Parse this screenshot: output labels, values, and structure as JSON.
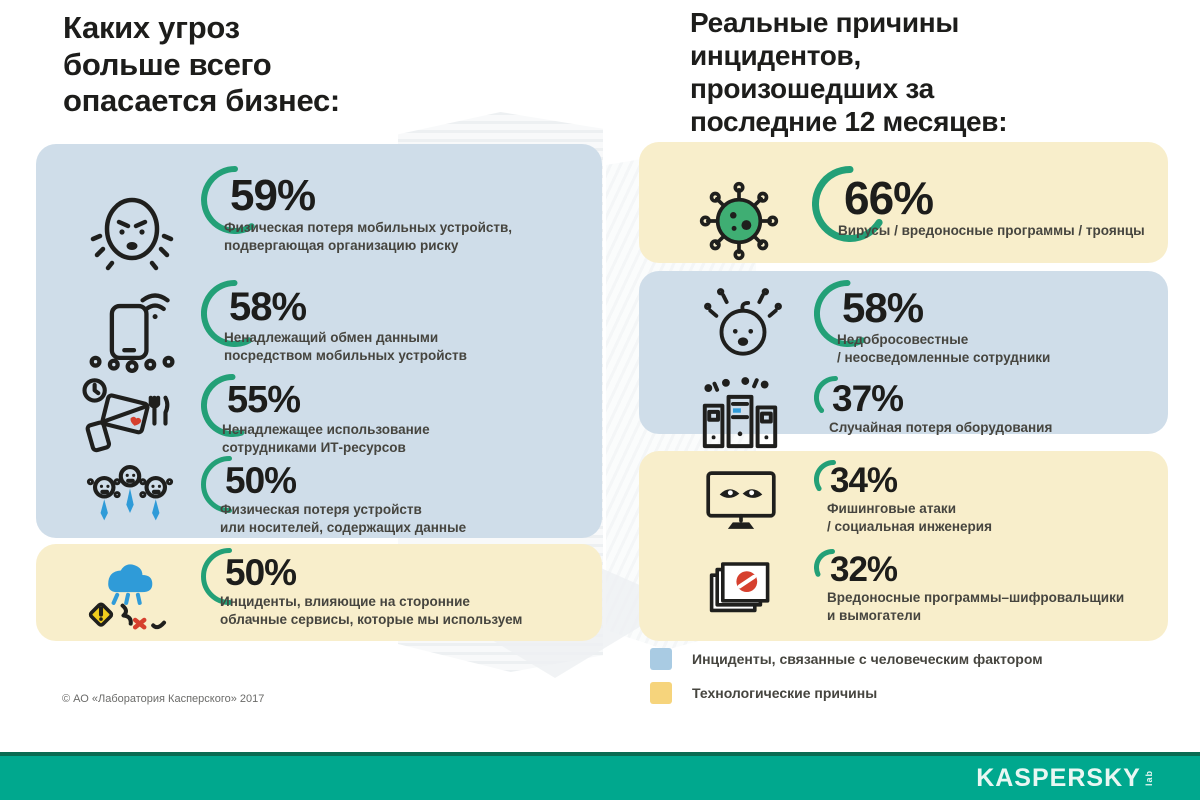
{
  "theme": {
    "arc_green": "#23a077",
    "panel_blue": "#cfdde9",
    "panel_yellow": "#f8eecb",
    "bar_green": "#00a88e",
    "bar_green_dark": "#0a6b52",
    "legend_blue": "#a9cbe3",
    "legend_yellow": "#f6d47c",
    "text_dark": "#1d1d1b",
    "icon_blue": "#2f9bd8",
    "icon_green": "#3fae73",
    "icon_red": "#d6402e",
    "icon_yellow": "#f0cd1e"
  },
  "left": {
    "title": "Каких угроз\nбольше всего\nопасается бизнес:",
    "items": [
      {
        "value": 59,
        "label": "59%",
        "desc": "Физическая потеря мобильных устройств,\nподвергающая организацию риску",
        "icon": "worried-face-icon",
        "group": "human"
      },
      {
        "value": 58,
        "label": "58%",
        "desc": "Ненадлежащий обмен данными\nпосредством мобильных устройств",
        "icon": "mobile-data-share-icon",
        "group": "human"
      },
      {
        "value": 55,
        "label": "55%",
        "desc": "Ненадлежащее использование\nсотрудниками ИТ-ресурсов",
        "icon": "it-resources-misuse-icon",
        "group": "human"
      },
      {
        "value": 50,
        "label": "50%",
        "desc": "Физическая потеря устройств\nили носителей, содержащих данные",
        "icon": "employees-device-loss-icon",
        "group": "human"
      },
      {
        "value": 50,
        "label": "50%",
        "desc": "Инциденты, влияющие на сторонние\nоблачные сервисы, которые мы используем",
        "icon": "cloud-incident-icon",
        "group": "tech"
      }
    ]
  },
  "right": {
    "title": "Реальные причины\nинцидентов,\nпроизошедших за\nпоследние 12 месяцев:",
    "items": [
      {
        "value": 66,
        "label": "66%",
        "desc": "Вирусы / вредоносные программы / троянцы",
        "icon": "virus-icon",
        "group": "tech"
      },
      {
        "value": 58,
        "label": "58%",
        "desc": "Недобросовестные\n/ неосведомленные сотрудники",
        "icon": "naive-employee-icon",
        "group": "human"
      },
      {
        "value": 37,
        "label": "37%",
        "desc": "Случайная потеря оборудования",
        "icon": "equipment-loss-icon",
        "group": "human"
      },
      {
        "value": 34,
        "label": "34%",
        "desc": "Фишинговые атаки\n/ социальная инженерия",
        "icon": "phishing-monitor-icon",
        "group": "tech"
      },
      {
        "value": 32,
        "label": "32%",
        "desc": "Вредоносные программы–шифровальщики\nи вымогатели",
        "icon": "ransomware-docs-icon",
        "group": "tech"
      }
    ]
  },
  "legend": {
    "items": [
      {
        "label": "Инциденты, связанные с человеческим фактором",
        "color": "#a9cbe3"
      },
      {
        "label": "Технологические причины",
        "color": "#f6d47c"
      }
    ]
  },
  "footer": {
    "copyright": "© АО «Лаборатория Касперского» 2017"
  },
  "brand": {
    "logo": "KASPERSKY",
    "logo_suffix": "lab"
  },
  "chart_data": [
    {
      "type": "bar",
      "title": "Каких угроз больше всего опасается бизнес:",
      "categories": [
        "Физическая потеря мобильных устройств, подвергающая организацию риску",
        "Ненадлежащий обмен данными посредством мобильных устройств",
        "Ненадлежащее использование сотрудниками ИТ-ресурсов",
        "Физическая потеря устройств или носителей, содержащих данные",
        "Инциденты, влияющие на сторонние облачные сервисы, которые мы используем"
      ],
      "values": [
        59,
        58,
        55,
        50,
        50
      ],
      "unit": "%",
      "group_of_each": [
        "human-factor",
        "human-factor",
        "human-factor",
        "human-factor",
        "technological"
      ],
      "legend": [
        "Инциденты, связанные с человеческим фактором",
        "Технологические причины"
      ],
      "legend_position": "bottom-right",
      "xlabel": "",
      "ylabel": "",
      "ylim": [
        0,
        100
      ]
    },
    {
      "type": "bar",
      "title": "Реальные причины инцидентов, произошедших за последние 12 месяцев:",
      "categories": [
        "Вирусы / вредоносные программы / троянцы",
        "Недобросовестные / неосведомленные сотрудники",
        "Случайная потеря оборудования",
        "Фишинговые атаки / социальная инженерия",
        "Вредоносные программы–шифровальщики и вымогатели"
      ],
      "values": [
        66,
        58,
        37,
        34,
        32
      ],
      "unit": "%",
      "group_of_each": [
        "technological",
        "human-factor",
        "human-factor",
        "technological",
        "technological"
      ],
      "xlabel": "",
      "ylabel": "",
      "ylim": [
        0,
        100
      ]
    }
  ]
}
